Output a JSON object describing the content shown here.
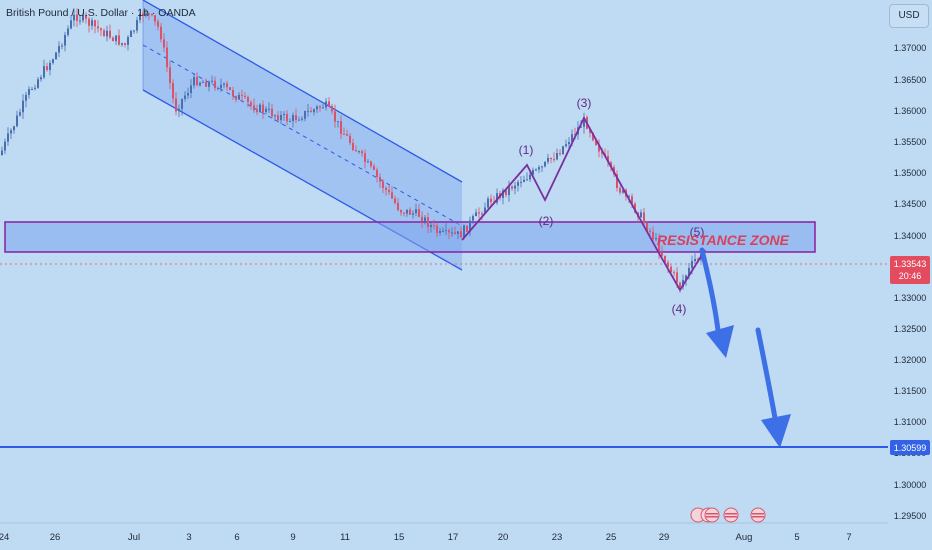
{
  "header": {
    "symbol_title": "British Pound / U.S. Dollar · 1h · OANDA",
    "currency_button": "USD"
  },
  "price_axis": {
    "ticks": [
      "1.37000",
      "1.36500",
      "1.36000",
      "1.35500",
      "1.35000",
      "1.34500",
      "1.34000",
      "1.33500",
      "1.33000",
      "1.32500",
      "1.32000",
      "1.31500",
      "1.31000",
      "1.30500",
      "1.30000",
      "1.29500"
    ],
    "current_price": "1.33543",
    "countdown": "20:46",
    "target_price": "1.30599"
  },
  "time_axis": {
    "ticks": [
      "24",
      "26",
      "Jul",
      "3",
      "6",
      "9",
      "11",
      "15",
      "17",
      "20",
      "23",
      "25",
      "29",
      "Aug",
      "5",
      "7"
    ]
  },
  "annotations": {
    "resistance_label": "RESISTANCE ZONE",
    "wave_labels": [
      "(1)",
      "(2)",
      "(3)",
      "(4)",
      "(5)"
    ]
  },
  "colors": {
    "background": "#bfdaf3",
    "bull_candle": "#4b6fae",
    "bear_candle": "#d9546a",
    "channel": "#2e5be8",
    "zone_border": "#8a1fa0",
    "wave_line": "#7a2ea0",
    "arrow": "#3d6fe6",
    "target_line": "#2e5be8",
    "price_badge": "#e34b5e",
    "target_badge": "#3362e6"
  },
  "event_icons": [
    "calendar-event-icon",
    "us-flag-icon",
    "us-flag-icon",
    "us-flag-icon",
    "us-flag-icon"
  ]
}
